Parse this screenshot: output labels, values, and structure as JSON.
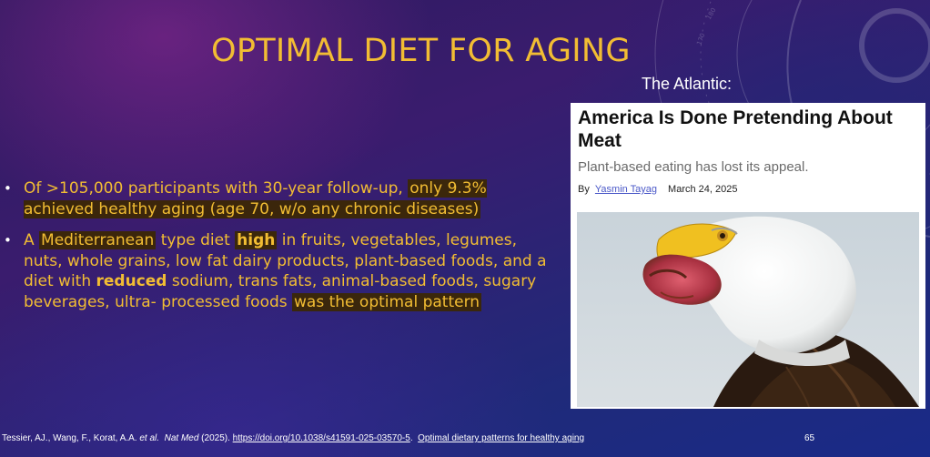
{
  "slide": {
    "title": "OPTIMAL DIET FOR AGING",
    "source_label": "The Atlantic:",
    "page_number": "65"
  },
  "bullets": [
    {
      "plain": "Of >105,000 participants with 30-year follow-up, ",
      "highlight": "only 9.3% achieved healthy aging (age 70, w/o any chronic diseases)"
    },
    {
      "pre": "A ",
      "hl_word": "Mediterranean",
      "text1": " type diet ",
      "bold1": "high",
      "text2": " in fruits, vegetables, legumes, nuts, whole grains, low fat dairy products, plant-based foods, and a diet with ",
      "bold2": "reduced",
      "text3": " sodium, trans fats, animal-based foods, sugary beverages, ultra- processed foods ",
      "highlight": "was the optimal pattern "
    }
  ],
  "article": {
    "headline": "America Is Done Pretending About Meat",
    "subheadline": "Plant-based eating has lost its appeal.",
    "by": "By",
    "author": "Yasmin Tayag",
    "date": "March 24, 2025",
    "image_icon": "bald-eagle-with-meat-photo"
  },
  "citation": {
    "authors": "Tessier, AJ., Wang, F., Korat, A.A. ",
    "etal": "et al.",
    "journal": "Nat Med",
    "year": " (2025). ",
    "doi": "https://doi.org/10.1038/s41591-025-03570-5",
    "article_title": "Optimal dietary patterns for healthy aging"
  },
  "colors": {
    "title": "#f2bd33",
    "body_text": "#f2bd33",
    "highlight_bg": "#3c2800",
    "background": "#2c1a5e"
  }
}
